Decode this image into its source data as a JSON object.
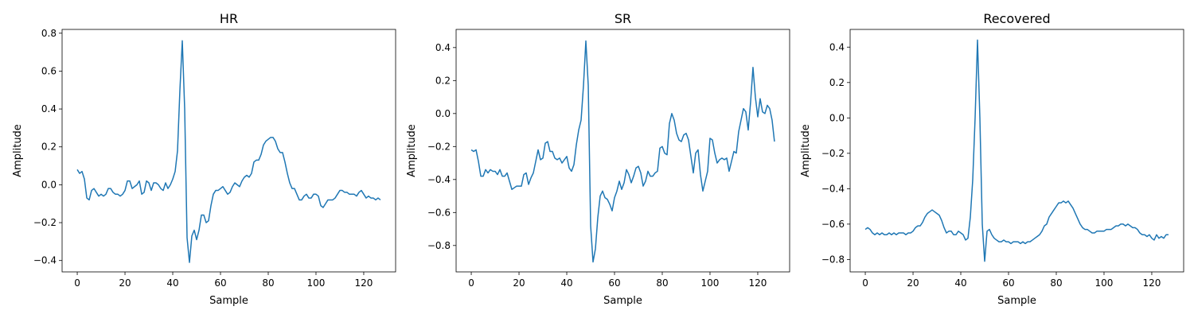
{
  "chart_data": [
    {
      "type": "line",
      "title": "HR",
      "xlabel": "Sample",
      "ylabel": "Amplitude",
      "xlim": [
        -6.35,
        133.35
      ],
      "ylim": [
        -0.46,
        0.82
      ],
      "xticks": [
        0,
        20,
        40,
        60,
        80,
        100,
        120
      ],
      "yticks": [
        -0.4,
        -0.2,
        0.0,
        0.2,
        0.4,
        0.6,
        0.8
      ],
      "ytick_labels": [
        "−0.4",
        "−0.2",
        "0.0",
        "0.2",
        "0.4",
        "0.6",
        "0.8"
      ],
      "grid": false,
      "color": "#1f77b4",
      "series": [
        {
          "values": [
            0.08,
            0.06,
            0.07,
            0.03,
            -0.07,
            -0.08,
            -0.03,
            -0.02,
            -0.04,
            -0.06,
            -0.05,
            -0.06,
            -0.05,
            -0.02,
            -0.02,
            -0.04,
            -0.05,
            -0.05,
            -0.06,
            -0.05,
            -0.03,
            0.02,
            0.02,
            -0.02,
            -0.01,
            0.0,
            0.02,
            -0.05,
            -0.04,
            0.02,
            0.01,
            -0.03,
            0.01,
            0.01,
            0.0,
            -0.02,
            -0.03,
            0.01,
            -0.02,
            0.0,
            0.03,
            0.07,
            0.18,
            0.5,
            0.76,
            0.4,
            -0.28,
            -0.41,
            -0.27,
            -0.24,
            -0.29,
            -0.24,
            -0.16,
            -0.16,
            -0.2,
            -0.19,
            -0.11,
            -0.05,
            -0.03,
            -0.03,
            -0.02,
            -0.01,
            -0.03,
            -0.05,
            -0.04,
            -0.01,
            0.01,
            0.0,
            -0.01,
            0.02,
            0.04,
            0.05,
            0.04,
            0.06,
            0.12,
            0.13,
            0.13,
            0.16,
            0.21,
            0.23,
            0.24,
            0.25,
            0.25,
            0.23,
            0.19,
            0.17,
            0.17,
            0.12,
            0.06,
            0.01,
            -0.02,
            -0.02,
            -0.05,
            -0.08,
            -0.08,
            -0.06,
            -0.05,
            -0.07,
            -0.07,
            -0.05,
            -0.05,
            -0.06,
            -0.11,
            -0.12,
            -0.1,
            -0.08,
            -0.08,
            -0.08,
            -0.07,
            -0.05,
            -0.03,
            -0.03,
            -0.04,
            -0.04,
            -0.05,
            -0.05,
            -0.05,
            -0.06,
            -0.04,
            -0.03,
            -0.05,
            -0.07,
            -0.06,
            -0.07,
            -0.07,
            -0.08,
            -0.07,
            -0.08
          ]
        }
      ]
    },
    {
      "type": "line",
      "title": "SR",
      "xlabel": "Sample",
      "ylabel": "Amplitude",
      "xlim": [
        -6.35,
        133.35
      ],
      "ylim": [
        -0.96,
        0.51
      ],
      "xticks": [
        0,
        20,
        40,
        60,
        80,
        100,
        120
      ],
      "yticks": [
        -0.8,
        -0.6,
        -0.4,
        -0.2,
        0.0,
        0.2,
        0.4
      ],
      "ytick_labels": [
        "−0.8",
        "−0.6",
        "−0.4",
        "−0.2",
        "0.0",
        "0.2",
        "0.4"
      ],
      "grid": false,
      "color": "#1f77b4",
      "series": [
        {
          "values": [
            -0.22,
            -0.23,
            -0.22,
            -0.29,
            -0.38,
            -0.38,
            -0.34,
            -0.36,
            -0.34,
            -0.35,
            -0.35,
            -0.37,
            -0.34,
            -0.38,
            -0.38,
            -0.36,
            -0.41,
            -0.46,
            -0.45,
            -0.44,
            -0.44,
            -0.44,
            -0.37,
            -0.36,
            -0.43,
            -0.39,
            -0.36,
            -0.29,
            -0.22,
            -0.28,
            -0.27,
            -0.18,
            -0.17,
            -0.23,
            -0.23,
            -0.27,
            -0.28,
            -0.27,
            -0.3,
            -0.28,
            -0.26,
            -0.33,
            -0.35,
            -0.31,
            -0.19,
            -0.1,
            -0.04,
            0.17,
            0.44,
            0.17,
            -0.68,
            -0.9,
            -0.82,
            -0.63,
            -0.5,
            -0.47,
            -0.51,
            -0.52,
            -0.55,
            -0.59,
            -0.51,
            -0.47,
            -0.41,
            -0.46,
            -0.42,
            -0.34,
            -0.37,
            -0.42,
            -0.38,
            -0.33,
            -0.32,
            -0.36,
            -0.44,
            -0.41,
            -0.35,
            -0.38,
            -0.38,
            -0.36,
            -0.35,
            -0.21,
            -0.2,
            -0.24,
            -0.25,
            -0.06,
            0.0,
            -0.04,
            -0.12,
            -0.16,
            -0.17,
            -0.13,
            -0.12,
            -0.16,
            -0.26,
            -0.36,
            -0.24,
            -0.22,
            -0.37,
            -0.47,
            -0.41,
            -0.35,
            -0.15,
            -0.16,
            -0.24,
            -0.3,
            -0.28,
            -0.27,
            -0.28,
            -0.27,
            -0.35,
            -0.29,
            -0.23,
            -0.24,
            -0.11,
            -0.04,
            0.03,
            0.01,
            -0.1,
            0.07,
            0.28,
            0.1,
            -0.02,
            0.09,
            0.01,
            0.0,
            0.05,
            0.03,
            -0.04,
            -0.17
          ]
        }
      ]
    },
    {
      "type": "line",
      "title": "Recovered",
      "xlabel": "Sample",
      "ylabel": "Amplitude",
      "xlim": [
        -6.35,
        133.35
      ],
      "ylim": [
        -0.87,
        0.5
      ],
      "xticks": [
        0,
        20,
        40,
        60,
        80,
        100,
        120
      ],
      "yticks": [
        -0.8,
        -0.6,
        -0.4,
        -0.2,
        0.0,
        0.2,
        0.4
      ],
      "ytick_labels": [
        "−0.8",
        "−0.6",
        "−0.4",
        "−0.2",
        "0.0",
        "0.2",
        "0.4"
      ],
      "grid": false,
      "color": "#1f77b4",
      "series": [
        {
          "values": [
            -0.63,
            -0.62,
            -0.63,
            -0.65,
            -0.66,
            -0.65,
            -0.66,
            -0.65,
            -0.66,
            -0.66,
            -0.65,
            -0.66,
            -0.65,
            -0.66,
            -0.65,
            -0.65,
            -0.65,
            -0.66,
            -0.65,
            -0.65,
            -0.64,
            -0.62,
            -0.61,
            -0.61,
            -0.59,
            -0.56,
            -0.54,
            -0.53,
            -0.52,
            -0.53,
            -0.54,
            -0.55,
            -0.58,
            -0.62,
            -0.65,
            -0.64,
            -0.64,
            -0.66,
            -0.66,
            -0.64,
            -0.65,
            -0.66,
            -0.69,
            -0.68,
            -0.56,
            -0.35,
            0.0,
            0.44,
            0.0,
            -0.6,
            -0.81,
            -0.64,
            -0.63,
            -0.66,
            -0.68,
            -0.69,
            -0.7,
            -0.7,
            -0.69,
            -0.7,
            -0.7,
            -0.71,
            -0.7,
            -0.7,
            -0.7,
            -0.71,
            -0.7,
            -0.71,
            -0.7,
            -0.7,
            -0.69,
            -0.68,
            -0.67,
            -0.66,
            -0.64,
            -0.61,
            -0.6,
            -0.56,
            -0.54,
            -0.52,
            -0.5,
            -0.48,
            -0.48,
            -0.47,
            -0.48,
            -0.47,
            -0.49,
            -0.51,
            -0.54,
            -0.57,
            -0.6,
            -0.62,
            -0.63,
            -0.63,
            -0.64,
            -0.65,
            -0.65,
            -0.64,
            -0.64,
            -0.64,
            -0.64,
            -0.63,
            -0.63,
            -0.63,
            -0.62,
            -0.61,
            -0.61,
            -0.6,
            -0.6,
            -0.61,
            -0.6,
            -0.61,
            -0.62,
            -0.62,
            -0.63,
            -0.65,
            -0.66,
            -0.66,
            -0.67,
            -0.66,
            -0.68,
            -0.69,
            -0.66,
            -0.68,
            -0.67,
            -0.68,
            -0.66,
            -0.66
          ]
        }
      ]
    }
  ]
}
